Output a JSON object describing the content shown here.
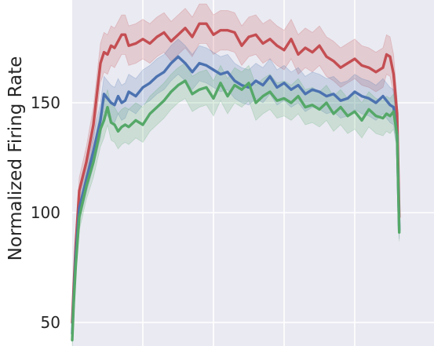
{
  "chart_data": {
    "type": "line",
    "title": "",
    "xlabel": "",
    "ylabel": "Normalized Firing Rate",
    "ylim": [
      41,
      198
    ],
    "xlim": [
      0,
      470
    ],
    "y_ticks": [
      50,
      100,
      150
    ],
    "x_gridlines": [
      100,
      200,
      300,
      400
    ],
    "grid": true,
    "background": "#EAEAF2",
    "x": [
      0,
      2,
      5,
      10,
      20,
      30,
      40,
      45,
      50,
      55,
      60,
      65,
      70,
      75,
      80,
      90,
      100,
      110,
      120,
      130,
      140,
      150,
      160,
      170,
      180,
      190,
      200,
      210,
      220,
      230,
      240,
      250,
      260,
      270,
      280,
      290,
      300,
      310,
      320,
      330,
      340,
      350,
      360,
      370,
      380,
      390,
      400,
      410,
      420,
      430,
      440,
      445,
      450,
      455,
      460,
      463
    ],
    "series": [
      {
        "color": "#C44E52",
        "values": [
          50,
          65,
          85,
          110,
          123,
          140,
          168,
          173,
          172,
          176,
          175,
          178,
          181,
          181,
          176,
          177,
          179,
          177,
          180,
          182,
          178,
          181,
          184,
          180,
          186,
          186,
          181,
          183,
          183,
          182,
          176,
          180,
          181,
          177,
          179,
          176,
          174,
          179,
          172,
          175,
          173,
          176,
          171,
          169,
          166,
          168,
          170,
          167,
          166,
          164,
          166,
          172,
          171,
          163,
          145,
          98
        ],
        "band": [
          4,
          4,
          5,
          6,
          7,
          8,
          9,
          9,
          9,
          9,
          9,
          9,
          9,
          9,
          9,
          9,
          9,
          9,
          9,
          9,
          9,
          9,
          9,
          9,
          9,
          9,
          9,
          9,
          9,
          9,
          9,
          9,
          9,
          9,
          9,
          9,
          9,
          9,
          9,
          9,
          9,
          9,
          9,
          9,
          9,
          9,
          9,
          9,
          9,
          9,
          9,
          9,
          9,
          9,
          7,
          4
        ]
      },
      {
        "color": "#4C72B0",
        "values": [
          45,
          60,
          80,
          102,
          115,
          128,
          142,
          154,
          152,
          150,
          149,
          153,
          150,
          151,
          155,
          153,
          157,
          159,
          162,
          164,
          168,
          171,
          168,
          164,
          168,
          167,
          165,
          163,
          164,
          160,
          158,
          157,
          160,
          158,
          162,
          157,
          159,
          156,
          158,
          154,
          156,
          155,
          153,
          154,
          151,
          152,
          155,
          153,
          152,
          150,
          153,
          151,
          149,
          148,
          135,
          92
        ],
        "band": [
          4,
          4,
          5,
          6,
          6,
          7,
          8,
          8,
          8,
          8,
          8,
          8,
          8,
          8,
          8,
          8,
          8,
          8,
          8,
          8,
          8,
          8,
          8,
          8,
          8,
          8,
          8,
          8,
          8,
          8,
          8,
          8,
          8,
          8,
          8,
          8,
          8,
          8,
          8,
          8,
          8,
          8,
          8,
          8,
          8,
          8,
          8,
          8,
          8,
          8,
          8,
          8,
          8,
          8,
          6,
          4
        ]
      },
      {
        "color": "#55A868",
        "values": [
          42,
          58,
          76,
          98,
          112,
          123,
          138,
          142,
          148,
          141,
          140,
          137,
          139,
          140,
          139,
          142,
          140,
          145,
          148,
          151,
          155,
          158,
          160,
          154,
          156,
          157,
          152,
          159,
          153,
          158,
          156,
          159,
          150,
          153,
          155,
          151,
          152,
          150,
          153,
          148,
          149,
          147,
          150,
          145,
          148,
          144,
          146,
          142,
          147,
          144,
          143,
          145,
          144,
          146,
          135,
          91
        ],
        "band": [
          4,
          4,
          5,
          6,
          6,
          7,
          8,
          8,
          8,
          8,
          8,
          8,
          8,
          8,
          8,
          8,
          8,
          8,
          8,
          8,
          8,
          8,
          8,
          8,
          8,
          8,
          8,
          8,
          8,
          8,
          8,
          8,
          8,
          8,
          8,
          8,
          8,
          8,
          8,
          8,
          8,
          8,
          8,
          8,
          8,
          8,
          8,
          8,
          8,
          8,
          8,
          8,
          8,
          8,
          6,
          4
        ]
      }
    ]
  }
}
